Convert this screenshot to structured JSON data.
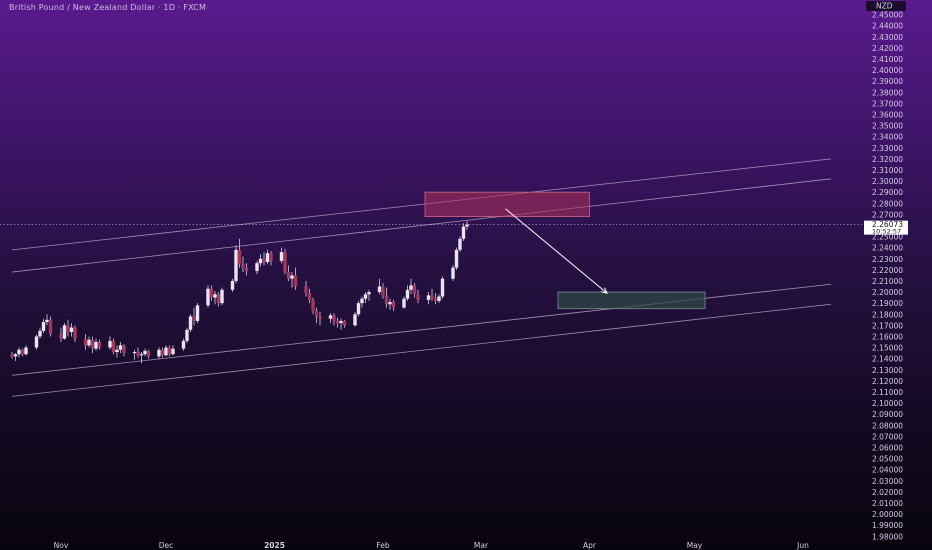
{
  "header": {
    "symbol_title": "British Pound / New Zealand Dollar · 1D · FXCM"
  },
  "price_axis": {
    "currency": "NZD",
    "last_price": "2.26073",
    "countdown": "10:52:57",
    "tick_labels": [
      "2.45000",
      "2.44000",
      "2.43000",
      "2.42000",
      "2.41000",
      "2.40000",
      "2.39000",
      "2.38000",
      "2.37000",
      "2.36000",
      "2.35000",
      "2.34000",
      "2.33000",
      "2.32000",
      "2.31000",
      "2.30000",
      "2.29000",
      "2.28000",
      "2.27000",
      "2.26000",
      "2.25000",
      "2.24000",
      "2.23000",
      "2.22000",
      "2.21000",
      "2.20000",
      "2.19000",
      "2.18000",
      "2.17000",
      "2.16000",
      "2.15000",
      "2.14000",
      "2.13000",
      "2.12000",
      "2.11000",
      "2.10000",
      "2.09000",
      "2.08000",
      "2.07000",
      "2.06000",
      "2.05000",
      "2.04000",
      "2.03000",
      "2.02000",
      "2.01000",
      "2.00000",
      "1.99000",
      "1.98000"
    ]
  },
  "time_axis": {
    "labels": [
      {
        "text": "Nov",
        "day": 0
      },
      {
        "text": "Dec",
        "day": 30
      },
      {
        "text": "2025",
        "day": 61,
        "bold": true
      },
      {
        "text": "Feb",
        "day": 92
      },
      {
        "text": "Mar",
        "day": 120
      },
      {
        "text": "Apr",
        "day": 151
      },
      {
        "text": "May",
        "day": 181
      },
      {
        "text": "Jun",
        "day": 212
      }
    ]
  },
  "colors": {
    "up": "#e8e4f0",
    "down": "#a3385e",
    "wick": "#d8cfe6",
    "channel": "#c8bcd8",
    "resistance_fill": "#b0305a",
    "resistance_border": "#d06488",
    "target_fill": "#2d4a46",
    "target_border": "#6f8f88",
    "arrow": "#ffffff"
  },
  "chart_data": {
    "type": "candlestick",
    "title": "British Pound / New Zealand Dollar · 1D · FXCM",
    "x_unit": "days since Nov 1 2024",
    "ylim": [
      1.98,
      2.455
    ],
    "candles": [
      {
        "x": -14,
        "o": 2.144,
        "h": 2.146,
        "l": 2.14,
        "c": 2.142
      },
      {
        "x": -13,
        "o": 2.142,
        "h": 2.145,
        "l": 2.138,
        "c": 2.144
      },
      {
        "x": -12,
        "o": 2.144,
        "h": 2.15,
        "l": 2.141,
        "c": 2.148
      },
      {
        "x": -11,
        "o": 2.148,
        "h": 2.149,
        "l": 2.142,
        "c": 2.144
      },
      {
        "x": -10,
        "o": 2.144,
        "h": 2.152,
        "l": 2.143,
        "c": 2.15
      },
      {
        "x": -7,
        "o": 2.15,
        "h": 2.162,
        "l": 2.148,
        "c": 2.16
      },
      {
        "x": -6,
        "o": 2.16,
        "h": 2.168,
        "l": 2.158,
        "c": 2.165
      },
      {
        "x": -5,
        "o": 2.165,
        "h": 2.176,
        "l": 2.163,
        "c": 2.173
      },
      {
        "x": -4,
        "o": 2.173,
        "h": 2.18,
        "l": 2.17,
        "c": 2.175
      },
      {
        "x": -3,
        "o": 2.175,
        "h": 2.178,
        "l": 2.16,
        "c": 2.162
      },
      {
        "x": 0,
        "o": 2.162,
        "h": 2.168,
        "l": 2.155,
        "c": 2.158
      },
      {
        "x": 1,
        "o": 2.158,
        "h": 2.172,
        "l": 2.157,
        "c": 2.17
      },
      {
        "x": 2,
        "o": 2.17,
        "h": 2.175,
        "l": 2.16,
        "c": 2.164
      },
      {
        "x": 3,
        "o": 2.164,
        "h": 2.172,
        "l": 2.16,
        "c": 2.168
      },
      {
        "x": 4,
        "o": 2.168,
        "h": 2.17,
        "l": 2.155,
        "c": 2.158
      },
      {
        "x": 7,
        "o": 2.158,
        "h": 2.162,
        "l": 2.148,
        "c": 2.152
      },
      {
        "x": 8,
        "o": 2.152,
        "h": 2.16,
        "l": 2.15,
        "c": 2.157
      },
      {
        "x": 9,
        "o": 2.157,
        "h": 2.16,
        "l": 2.145,
        "c": 2.149
      },
      {
        "x": 10,
        "o": 2.149,
        "h": 2.158,
        "l": 2.147,
        "c": 2.155
      },
      {
        "x": 11,
        "o": 2.155,
        "h": 2.157,
        "l": 2.148,
        "c": 2.15
      },
      {
        "x": 14,
        "o": 2.15,
        "h": 2.16,
        "l": 2.148,
        "c": 2.156
      },
      {
        "x": 15,
        "o": 2.156,
        "h": 2.158,
        "l": 2.144,
        "c": 2.146
      },
      {
        "x": 16,
        "o": 2.146,
        "h": 2.152,
        "l": 2.141,
        "c": 2.148
      },
      {
        "x": 17,
        "o": 2.148,
        "h": 2.155,
        "l": 2.145,
        "c": 2.152
      },
      {
        "x": 18,
        "o": 2.152,
        "h": 2.153,
        "l": 2.142,
        "c": 2.145
      },
      {
        "x": 21,
        "o": 2.145,
        "h": 2.148,
        "l": 2.139,
        "c": 2.146
      },
      {
        "x": 22,
        "o": 2.146,
        "h": 2.15,
        "l": 2.141,
        "c": 2.143
      },
      {
        "x": 23,
        "o": 2.143,
        "h": 2.146,
        "l": 2.136,
        "c": 2.144
      },
      {
        "x": 24,
        "o": 2.144,
        "h": 2.149,
        "l": 2.142,
        "c": 2.147
      },
      {
        "x": 25,
        "o": 2.147,
        "h": 2.148,
        "l": 2.14,
        "c": 2.142
      },
      {
        "x": 28,
        "o": 2.142,
        "h": 2.15,
        "l": 2.14,
        "c": 2.148
      },
      {
        "x": 29,
        "o": 2.148,
        "h": 2.15,
        "l": 2.141,
        "c": 2.143
      },
      {
        "x": 30,
        "o": 2.143,
        "h": 2.152,
        "l": 2.142,
        "c": 2.15
      },
      {
        "x": 31,
        "o": 2.15,
        "h": 2.152,
        "l": 2.142,
        "c": 2.144
      },
      {
        "x": 32,
        "o": 2.144,
        "h": 2.152,
        "l": 2.143,
        "c": 2.149
      },
      {
        "x": 35,
        "o": 2.149,
        "h": 2.158,
        "l": 2.147,
        "c": 2.156
      },
      {
        "x": 36,
        "o": 2.156,
        "h": 2.168,
        "l": 2.154,
        "c": 2.166
      },
      {
        "x": 37,
        "o": 2.166,
        "h": 2.18,
        "l": 2.164,
        "c": 2.178
      },
      {
        "x": 38,
        "o": 2.178,
        "h": 2.186,
        "l": 2.17,
        "c": 2.174
      },
      {
        "x": 39,
        "o": 2.174,
        "h": 2.19,
        "l": 2.172,
        "c": 2.188
      },
      {
        "x": 42,
        "o": 2.188,
        "h": 2.206,
        "l": 2.186,
        "c": 2.203
      },
      {
        "x": 43,
        "o": 2.203,
        "h": 2.206,
        "l": 2.192,
        "c": 2.195
      },
      {
        "x": 44,
        "o": 2.195,
        "h": 2.201,
        "l": 2.189,
        "c": 2.198
      },
      {
        "x": 45,
        "o": 2.198,
        "h": 2.2,
        "l": 2.187,
        "c": 2.19
      },
      {
        "x": 46,
        "o": 2.19,
        "h": 2.204,
        "l": 2.188,
        "c": 2.202
      },
      {
        "x": 49,
        "o": 2.202,
        "h": 2.212,
        "l": 2.2,
        "c": 2.21
      },
      {
        "x": 50,
        "o": 2.21,
        "h": 2.242,
        "l": 2.208,
        "c": 2.238
      },
      {
        "x": 51,
        "o": 2.238,
        "h": 2.248,
        "l": 2.222,
        "c": 2.225
      },
      {
        "x": 52,
        "o": 2.225,
        "h": 2.232,
        "l": 2.218,
        "c": 2.222
      },
      {
        "x": 53,
        "o": 2.222,
        "h": 2.226,
        "l": 2.215,
        "c": 2.219
      },
      {
        "x": 56,
        "o": 2.219,
        "h": 2.228,
        "l": 2.216,
        "c": 2.226
      },
      {
        "x": 57,
        "o": 2.226,
        "h": 2.234,
        "l": 2.223,
        "c": 2.23
      },
      {
        "x": 58,
        "o": 2.23,
        "h": 2.236,
        "l": 2.224,
        "c": 2.227
      },
      {
        "x": 59,
        "o": 2.227,
        "h": 2.238,
        "l": 2.225,
        "c": 2.235
      },
      {
        "x": 60,
        "o": 2.235,
        "h": 2.237,
        "l": 2.224,
        "c": 2.228
      },
      {
        "x": 63,
        "o": 2.228,
        "h": 2.24,
        "l": 2.226,
        "c": 2.236
      },
      {
        "x": 64,
        "o": 2.236,
        "h": 2.239,
        "l": 2.216,
        "c": 2.218
      },
      {
        "x": 65,
        "o": 2.218,
        "h": 2.224,
        "l": 2.21,
        "c": 2.212
      },
      {
        "x": 66,
        "o": 2.212,
        "h": 2.218,
        "l": 2.204,
        "c": 2.215
      },
      {
        "x": 67,
        "o": 2.215,
        "h": 2.222,
        "l": 2.202,
        "c": 2.205
      },
      {
        "x": 70,
        "o": 2.205,
        "h": 2.21,
        "l": 2.196,
        "c": 2.199
      },
      {
        "x": 71,
        "o": 2.199,
        "h": 2.203,
        "l": 2.19,
        "c": 2.193
      },
      {
        "x": 72,
        "o": 2.193,
        "h": 2.195,
        "l": 2.18,
        "c": 2.183
      },
      {
        "x": 73,
        "o": 2.183,
        "h": 2.186,
        "l": 2.172,
        "c": 2.178
      },
      {
        "x": 74,
        "o": 2.178,
        "h": 2.182,
        "l": 2.17,
        "c": 2.176
      },
      {
        "x": 77,
        "o": 2.176,
        "h": 2.181,
        "l": 2.172,
        "c": 2.179
      },
      {
        "x": 78,
        "o": 2.179,
        "h": 2.181,
        "l": 2.17,
        "c": 2.174
      },
      {
        "x": 79,
        "o": 2.174,
        "h": 2.177,
        "l": 2.168,
        "c": 2.172
      },
      {
        "x": 80,
        "o": 2.172,
        "h": 2.176,
        "l": 2.166,
        "c": 2.174
      },
      {
        "x": 81,
        "o": 2.174,
        "h": 2.175,
        "l": 2.168,
        "c": 2.17
      },
      {
        "x": 84,
        "o": 2.17,
        "h": 2.182,
        "l": 2.169,
        "c": 2.18
      },
      {
        "x": 85,
        "o": 2.18,
        "h": 2.192,
        "l": 2.178,
        "c": 2.19
      },
      {
        "x": 86,
        "o": 2.19,
        "h": 2.196,
        "l": 2.186,
        "c": 2.194
      },
      {
        "x": 87,
        "o": 2.194,
        "h": 2.2,
        "l": 2.19,
        "c": 2.198
      },
      {
        "x": 88,
        "o": 2.198,
        "h": 2.202,
        "l": 2.192,
        "c": 2.2
      },
      {
        "x": 91,
        "o": 2.2,
        "h": 2.212,
        "l": 2.198,
        "c": 2.205
      },
      {
        "x": 92,
        "o": 2.205,
        "h": 2.208,
        "l": 2.194,
        "c": 2.197
      },
      {
        "x": 93,
        "o": 2.197,
        "h": 2.204,
        "l": 2.186,
        "c": 2.189
      },
      {
        "x": 94,
        "o": 2.189,
        "h": 2.194,
        "l": 2.184,
        "c": 2.191
      },
      {
        "x": 95,
        "o": 2.191,
        "h": 2.193,
        "l": 2.183,
        "c": 2.186
      },
      {
        "x": 98,
        "o": 2.186,
        "h": 2.196,
        "l": 2.185,
        "c": 2.194
      },
      {
        "x": 99,
        "o": 2.194,
        "h": 2.206,
        "l": 2.192,
        "c": 2.202
      },
      {
        "x": 100,
        "o": 2.202,
        "h": 2.212,
        "l": 2.198,
        "c": 2.206
      },
      {
        "x": 101,
        "o": 2.206,
        "h": 2.208,
        "l": 2.195,
        "c": 2.198
      },
      {
        "x": 102,
        "o": 2.198,
        "h": 2.202,
        "l": 2.19,
        "c": 2.193
      },
      {
        "x": 105,
        "o": 2.193,
        "h": 2.2,
        "l": 2.189,
        "c": 2.197
      },
      {
        "x": 106,
        "o": 2.197,
        "h": 2.203,
        "l": 2.192,
        "c": 2.195
      },
      {
        "x": 107,
        "o": 2.195,
        "h": 2.199,
        "l": 2.189,
        "c": 2.192
      },
      {
        "x": 108,
        "o": 2.192,
        "h": 2.198,
        "l": 2.19,
        "c": 2.196
      },
      {
        "x": 109,
        "o": 2.196,
        "h": 2.214,
        "l": 2.194,
        "c": 2.212
      },
      {
        "x": 112,
        "o": 2.212,
        "h": 2.224,
        "l": 2.21,
        "c": 2.222
      },
      {
        "x": 113,
        "o": 2.222,
        "h": 2.24,
        "l": 2.22,
        "c": 2.238
      },
      {
        "x": 114,
        "o": 2.238,
        "h": 2.25,
        "l": 2.236,
        "c": 2.248
      },
      {
        "x": 115,
        "o": 2.248,
        "h": 2.262,
        "l": 2.246,
        "c": 2.259
      },
      {
        "x": 116,
        "o": 2.259,
        "h": 2.264,
        "l": 2.256,
        "c": 2.261
      }
    ],
    "channels": [
      {
        "points": [
          [
            -14,
            2.238
          ],
          [
            220,
            2.32
          ]
        ]
      },
      {
        "points": [
          [
            -14,
            2.218
          ],
          [
            220,
            2.302
          ]
        ]
      },
      {
        "points": [
          [
            -14,
            2.125
          ],
          [
            220,
            2.207
          ]
        ]
      },
      {
        "points": [
          [
            -14,
            2.106
          ],
          [
            220,
            2.189
          ]
        ]
      }
    ],
    "zones": [
      {
        "kind": "resistance",
        "x1": 104,
        "x2": 151,
        "y1": 2.29,
        "y2": 2.268
      },
      {
        "kind": "target",
        "x1": 142,
        "x2": 184,
        "y1": 2.2,
        "y2": 2.185
      }
    ],
    "arrow": {
      "from": [
        127,
        2.275
      ],
      "to": [
        156,
        2.199
      ]
    },
    "last_price_value": 2.26073
  }
}
